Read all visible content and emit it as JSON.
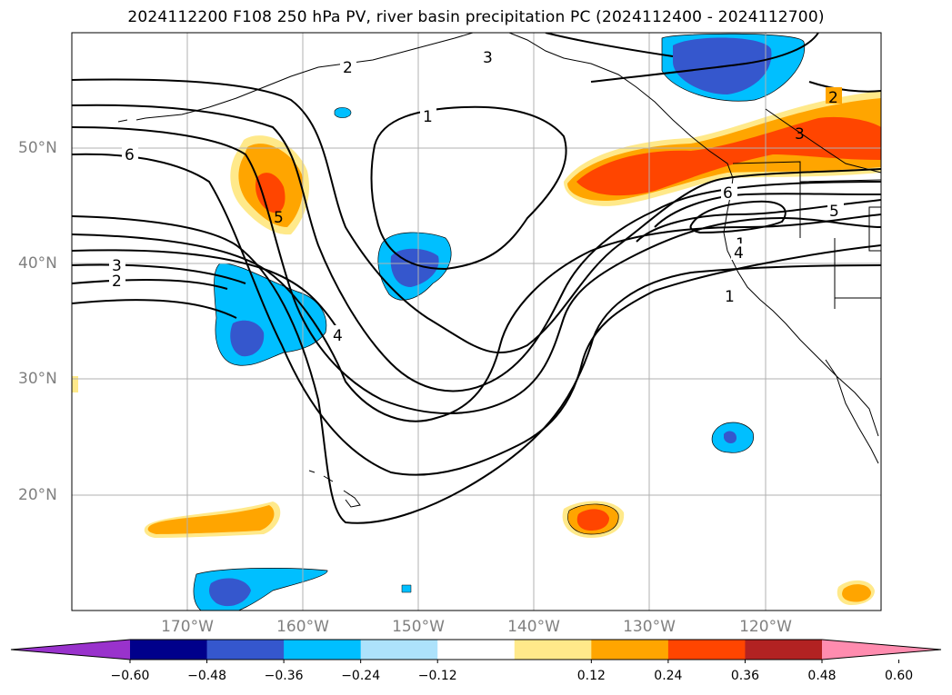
{
  "title": "2024112200 F108 250 hPa PV, river basin precipitation PC (2024112400 - 2024112700)",
  "map": {
    "lat_labels": [
      "50°N",
      "40°N",
      "30°N",
      "20°N"
    ],
    "lon_labels": [
      "170°W",
      "160°W",
      "150°W",
      "140°W",
      "130°W",
      "120°W"
    ],
    "contour_labels": [
      "1",
      "1",
      "1",
      "2",
      "2",
      "2",
      "3",
      "3",
      "3",
      "4",
      "4",
      "5",
      "5",
      "6",
      "6"
    ]
  },
  "colorbar": {
    "ticks": [
      "−0.60",
      "−0.48",
      "−0.36",
      "−0.24",
      "−0.12",
      "0.12",
      "0.24",
      "0.36",
      "0.48",
      "0.60"
    ],
    "colors": [
      "#9932cc",
      "#00008b",
      "#3557cd",
      "#00bfff",
      "#ade2fb",
      "#ffffff",
      "#ffe98a",
      "#ffa500",
      "#ff4500",
      "#b22222",
      "#ff8caf"
    ]
  }
}
